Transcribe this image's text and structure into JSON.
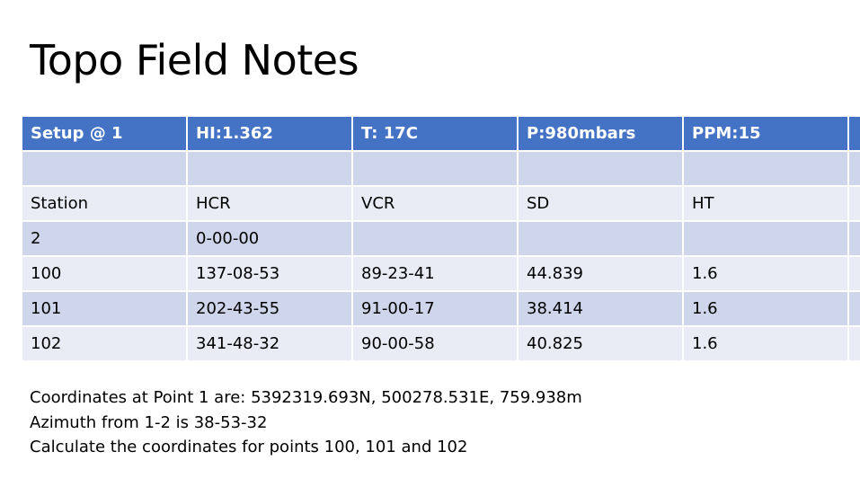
{
  "title": "Topo Field Notes",
  "table": {
    "header": [
      "Setup @ 1",
      "HI:1.362",
      "T: 17C",
      "P:980mbars",
      "PPM:15"
    ],
    "rows": [
      [
        null,
        null,
        null,
        null,
        null
      ],
      [
        "Station",
        "HCR",
        "VCR",
        "SD",
        "HT"
      ],
      [
        "2",
        "0-00-00",
        null,
        null,
        null
      ],
      [
        "100",
        "137-08-53",
        "89-23-41",
        "44.839",
        "1.6"
      ],
      [
        "101",
        "202-43-55",
        "91-00-17",
        "38.414",
        "1.6"
      ],
      [
        "102",
        "341-48-32",
        "90-00-58",
        "40.825",
        "1.6"
      ]
    ]
  },
  "notes": [
    "Coordinates at Point 1 are: 5392319.693N, 500278.531E, 759.938m",
    "Azimuth from 1-2 is 38-53-32",
    "Calculate the coordinates for points 100, 101 and 102"
  ]
}
